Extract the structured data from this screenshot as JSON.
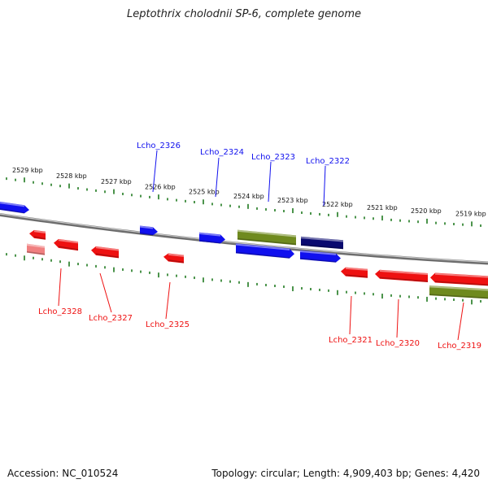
{
  "title": "Leptothrix cholodnii SP-6, complete genome",
  "footer": {
    "accession": "Accession: NC_010524",
    "summary": "Topology: circular; Length: 4,909,403 bp; Genes: 4,420"
  },
  "colors": {
    "forward_cds": "#1010ee",
    "reverse_cds": "#ee1111",
    "rna": "#6f8a1e",
    "selected": "#0a0a70",
    "pseudo": "#f08080",
    "tick": "#1f7a1f",
    "backbone": "#888888"
  },
  "scale": {
    "ticks": [
      {
        "label": "2529 kbp"
      },
      {
        "label": "2528 kbp"
      },
      {
        "label": "2527 kbp"
      },
      {
        "label": "2526 kbp"
      },
      {
        "label": "2525 kbp"
      },
      {
        "label": "2524 kbp"
      },
      {
        "label": "2523 kbp"
      },
      {
        "label": "2522 kbp"
      },
      {
        "label": "2521 kbp"
      },
      {
        "label": "2520 kbp"
      },
      {
        "label": "2519 kbp"
      }
    ]
  },
  "genes": [
    {
      "id": "g_top_left",
      "strand": "forward",
      "kind": "cds",
      "label": ""
    },
    {
      "id": "g_2326",
      "strand": "forward",
      "kind": "cds",
      "label": "Lcho_2326"
    },
    {
      "id": "g_2324",
      "strand": "forward",
      "kind": "cds",
      "label": "Lcho_2324"
    },
    {
      "id": "g_2323_rna",
      "strand": "forward",
      "kind": "rna",
      "label": "Lcho_2323"
    },
    {
      "id": "g_2323",
      "strand": "forward",
      "kind": "cds",
      "label": ""
    },
    {
      "id": "g_2322_sel",
      "strand": "forward",
      "kind": "selected",
      "label": "Lcho_2322"
    },
    {
      "id": "g_2322",
      "strand": "forward",
      "kind": "cds",
      "label": ""
    },
    {
      "id": "g_2328",
      "strand": "reverse",
      "kind": "cds",
      "label": "Lcho_2328"
    },
    {
      "id": "g_2328_pseudo",
      "strand": "reverse",
      "kind": "pseudo",
      "label": ""
    },
    {
      "id": "g_2327a",
      "strand": "reverse",
      "kind": "cds",
      "label": "Lcho_2327"
    },
    {
      "id": "g_2327b",
      "strand": "reverse",
      "kind": "cds",
      "label": ""
    },
    {
      "id": "g_2325",
      "strand": "reverse",
      "kind": "cds",
      "label": "Lcho_2325"
    },
    {
      "id": "g_2321",
      "strand": "reverse",
      "kind": "cds",
      "label": "Lcho_2321"
    },
    {
      "id": "g_2320",
      "strand": "reverse",
      "kind": "cds",
      "label": "Lcho_2320"
    },
    {
      "id": "g_2319",
      "strand": "reverse",
      "kind": "cds",
      "label": "Lcho_2319"
    },
    {
      "id": "g_2319_rna",
      "strand": "reverse",
      "kind": "rna",
      "label": ""
    }
  ]
}
